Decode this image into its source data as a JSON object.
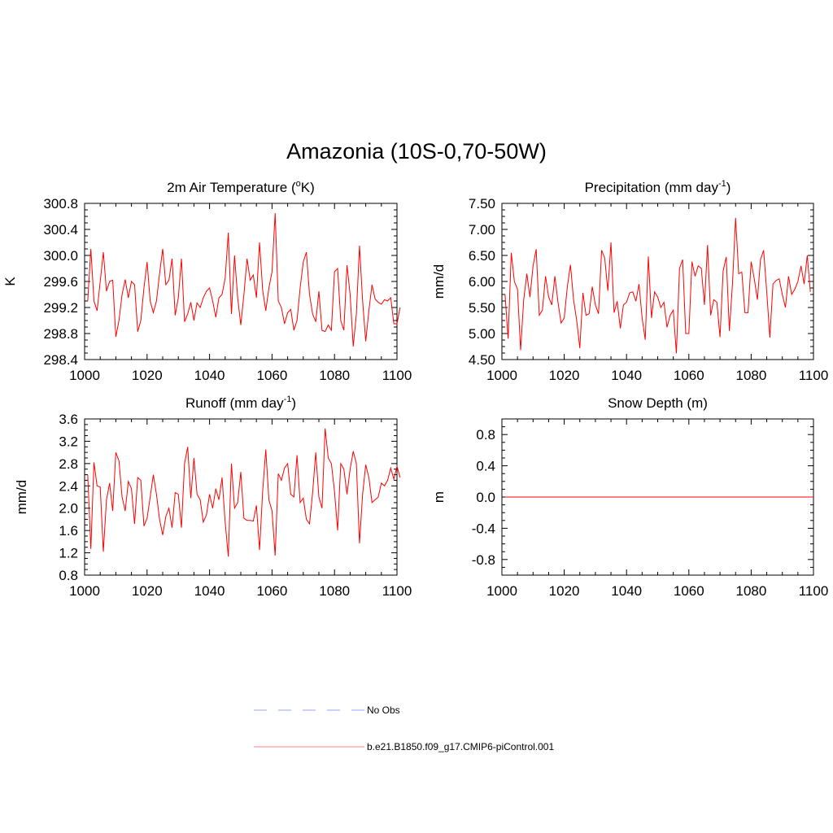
{
  "figure": {
    "title": "Amazonia (10S-0,70-50W)"
  },
  "legend": {
    "items": [
      {
        "label": "No Obs",
        "color": "#9aa0ff",
        "style": "dashed"
      },
      {
        "label": "b.e21.B1850.f09_g17.CMIP6-piControl.001",
        "color": "#ff8080",
        "style": "solid"
      }
    ]
  },
  "chart_data": [
    {
      "id": "temp",
      "type": "line",
      "title": "2m Air Temperature (",
      "title_sup": "o",
      "title_tail": "K)",
      "ylabel": "K",
      "xlim": [
        1000,
        1100
      ],
      "ylim": [
        298.4,
        300.8
      ],
      "xticks": [
        "1000",
        "1020",
        "1040",
        "1060",
        "1080",
        "1100"
      ],
      "yticks": [
        "298.4",
        "298.8",
        "299.2",
        "299.6",
        "300.0",
        "300.4",
        "300.8"
      ],
      "x_start": 1001,
      "x_step": 1,
      "series": [
        {
          "color": "#ff0000",
          "values": [
            299.3,
            300.1,
            299.3,
            299.15,
            299.6,
            300.05,
            299.45,
            299.6,
            299.62,
            298.75,
            299.0,
            299.4,
            299.63,
            299.35,
            299.6,
            299.55,
            298.83,
            299.0,
            299.5,
            299.9,
            299.3,
            299.12,
            299.3,
            299.72,
            300.1,
            299.55,
            299.62,
            299.95,
            299.08,
            299.35,
            299.95,
            298.98,
            299.1,
            299.28,
            299.0,
            299.27,
            299.2,
            299.35,
            299.45,
            299.5,
            299.3,
            299.05,
            299.35,
            299.4,
            299.65,
            300.35,
            299.1,
            300.0,
            299.35,
            298.93,
            299.4,
            299.95,
            299.62,
            299.7,
            299.35,
            300.2,
            299.47,
            299.15,
            299.5,
            299.75,
            300.65,
            299.3,
            299.2,
            298.95,
            299.12,
            299.17,
            298.85,
            299.0,
            299.5,
            299.9,
            300.05,
            299.4,
            299.1,
            298.98,
            299.45,
            298.85,
            298.83,
            298.93,
            298.85,
            299.75,
            299.8,
            299.0,
            298.85,
            299.85,
            299.4,
            298.6,
            299.1,
            300.15,
            299.3,
            298.68,
            299.15,
            299.55,
            299.33,
            299.28,
            299.25,
            299.32,
            299.3,
            299.35,
            298.95,
            298.95,
            299.2
          ]
        }
      ]
    },
    {
      "id": "precip",
      "type": "line",
      "title": "Precipitation (mm day",
      "title_sup": "-1",
      "title_tail": ")",
      "ylabel": "mm/d",
      "xlim": [
        1000,
        1100
      ],
      "ylim": [
        4.5,
        7.5
      ],
      "xticks": [
        "1000",
        "1020",
        "1040",
        "1060",
        "1080",
        "1100"
      ],
      "yticks": [
        "4.50",
        "5.00",
        "5.50",
        "6.00",
        "6.50",
        "7.00",
        "7.50"
      ],
      "x_start": 1001,
      "x_step": 1,
      "series": [
        {
          "color": "#ff0000",
          "values": [
            5.75,
            4.9,
            6.55,
            6.0,
            5.85,
            4.68,
            5.65,
            6.15,
            5.7,
            6.3,
            6.62,
            5.35,
            5.45,
            6.1,
            5.7,
            5.55,
            6.1,
            5.6,
            5.2,
            5.3,
            5.9,
            6.32,
            5.65,
            5.25,
            4.72,
            5.78,
            5.35,
            5.38,
            5.9,
            5.55,
            5.38,
            6.6,
            6.45,
            5.82,
            6.75,
            5.4,
            5.62,
            5.1,
            5.55,
            5.6,
            5.78,
            5.8,
            5.62,
            5.95,
            5.3,
            4.88,
            6.48,
            5.3,
            5.8,
            5.7,
            5.5,
            5.6,
            5.12,
            5.35,
            5.45,
            4.62,
            6.25,
            6.42,
            5.0,
            5.0,
            6.38,
            6.1,
            6.3,
            6.25,
            5.55,
            6.7,
            5.35,
            5.65,
            5.6,
            4.93,
            6.2,
            6.47,
            5.05,
            5.95,
            7.22,
            6.15,
            6.18,
            5.4,
            5.4,
            6.38,
            6.05,
            5.65,
            6.42,
            6.6,
            5.8,
            4.92,
            5.95,
            6.02,
            6.05,
            5.75,
            5.5,
            6.1,
            5.75,
            5.85,
            6.0,
            6.3,
            5.95,
            6.5,
            5.8
          ]
        }
      ]
    },
    {
      "id": "runoff",
      "type": "line",
      "title": "Runoff (mm day",
      "title_sup": "-1",
      "title_tail": ")",
      "ylabel": "mm/d",
      "xlim": [
        1000,
        1100
      ],
      "ylim": [
        0.8,
        3.6
      ],
      "xticks": [
        "1000",
        "1020",
        "1040",
        "1060",
        "1080",
        "1100"
      ],
      "yticks": [
        "0.8",
        "1.2",
        "1.6",
        "2.0",
        "2.4",
        "2.8",
        "3.2",
        "3.6"
      ],
      "x_start": 1001,
      "x_step": 1,
      "series": [
        {
          "color": "#ff0000",
          "values": [
            2.6,
            1.27,
            2.82,
            2.4,
            2.38,
            1.22,
            2.15,
            2.45,
            1.95,
            3.0,
            2.85,
            2.2,
            1.95,
            2.48,
            2.35,
            1.72,
            2.55,
            2.5,
            1.68,
            1.82,
            2.2,
            2.6,
            2.25,
            1.8,
            1.52,
            1.85,
            2.0,
            1.65,
            2.28,
            2.25,
            1.65,
            2.8,
            3.1,
            2.18,
            2.9,
            2.25,
            2.15,
            1.75,
            1.88,
            2.25,
            2.0,
            2.35,
            2.15,
            2.55,
            1.75,
            1.13,
            2.8,
            2.0,
            2.1,
            2.65,
            1.82,
            1.78,
            1.78,
            1.77,
            2.05,
            1.25,
            2.3,
            3.05,
            2.15,
            1.95,
            1.15,
            2.62,
            2.5,
            2.72,
            2.8,
            2.25,
            2.2,
            2.95,
            2.1,
            2.18,
            1.8,
            1.72,
            2.28,
            3.0,
            2.2,
            2.0,
            3.43,
            2.9,
            2.8,
            2.3,
            1.6,
            2.8,
            2.7,
            2.25,
            2.7,
            3.02,
            2.8,
            1.37,
            2.25,
            2.78,
            2.55,
            2.1,
            2.15,
            2.2,
            2.45,
            2.4,
            2.5,
            2.72,
            2.52,
            2.75,
            2.55
          ]
        }
      ]
    },
    {
      "id": "snow",
      "type": "line",
      "title": "Snow Depth (m)",
      "title_sup": "",
      "title_tail": "",
      "ylabel": "m",
      "xlim": [
        1000,
        1100
      ],
      "ylim": [
        -1.0,
        1.0
      ],
      "yticks_values": [
        -0.8,
        -0.4,
        0.0,
        0.4,
        0.8
      ],
      "xticks": [
        "1000",
        "1020",
        "1040",
        "1060",
        "1080",
        "1100"
      ],
      "yticks": [
        "-0.8",
        "-0.4",
        "0.0",
        "0.4",
        "0.8"
      ],
      "x_start": 1001,
      "x_step": 99,
      "series": [
        {
          "color": "#ff0000",
          "values": [
            0.0,
            0.0
          ]
        }
      ]
    }
  ]
}
